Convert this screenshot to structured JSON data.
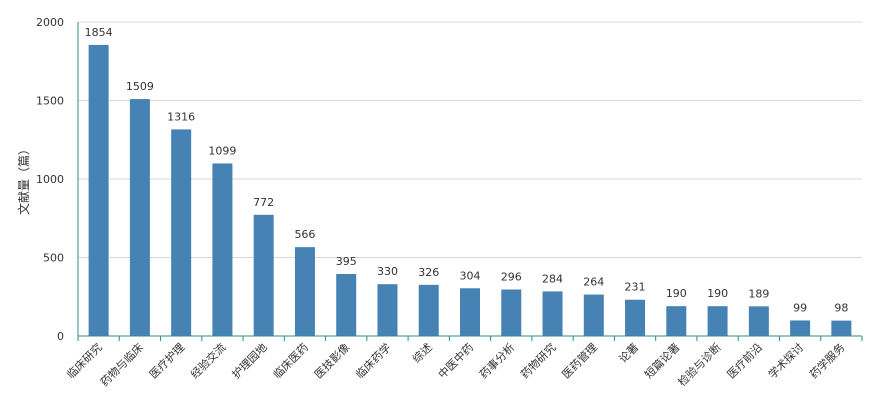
{
  "chart_data": {
    "type": "bar",
    "ylabel": "文献量（篇）",
    "xlabel": "",
    "ylim": [
      0,
      2000
    ],
    "y_ticks": [
      "0",
      "500",
      "1000",
      "1500",
      "2000"
    ],
    "grid": true,
    "categories": [
      "临床研究",
      "药物与临床",
      "医疗护理",
      "经验交流",
      "护理园地",
      "临床医药",
      "医技影像",
      "临床药学",
      "综述",
      "中医中药",
      "药事分析",
      "药物研究",
      "医药管理",
      "论著",
      "短篇论著",
      "检验与诊断",
      "医疗前沿",
      "学术探讨",
      "药学服务"
    ],
    "values": [
      1854,
      1509,
      1316,
      1099,
      772,
      566,
      395,
      330,
      326,
      304,
      296,
      284,
      264,
      231,
      190,
      190,
      189,
      99,
      98
    ],
    "bar_color": "#4682b4",
    "axis_color": "#2e8b8b",
    "grid_color": "#d9d9d9"
  }
}
